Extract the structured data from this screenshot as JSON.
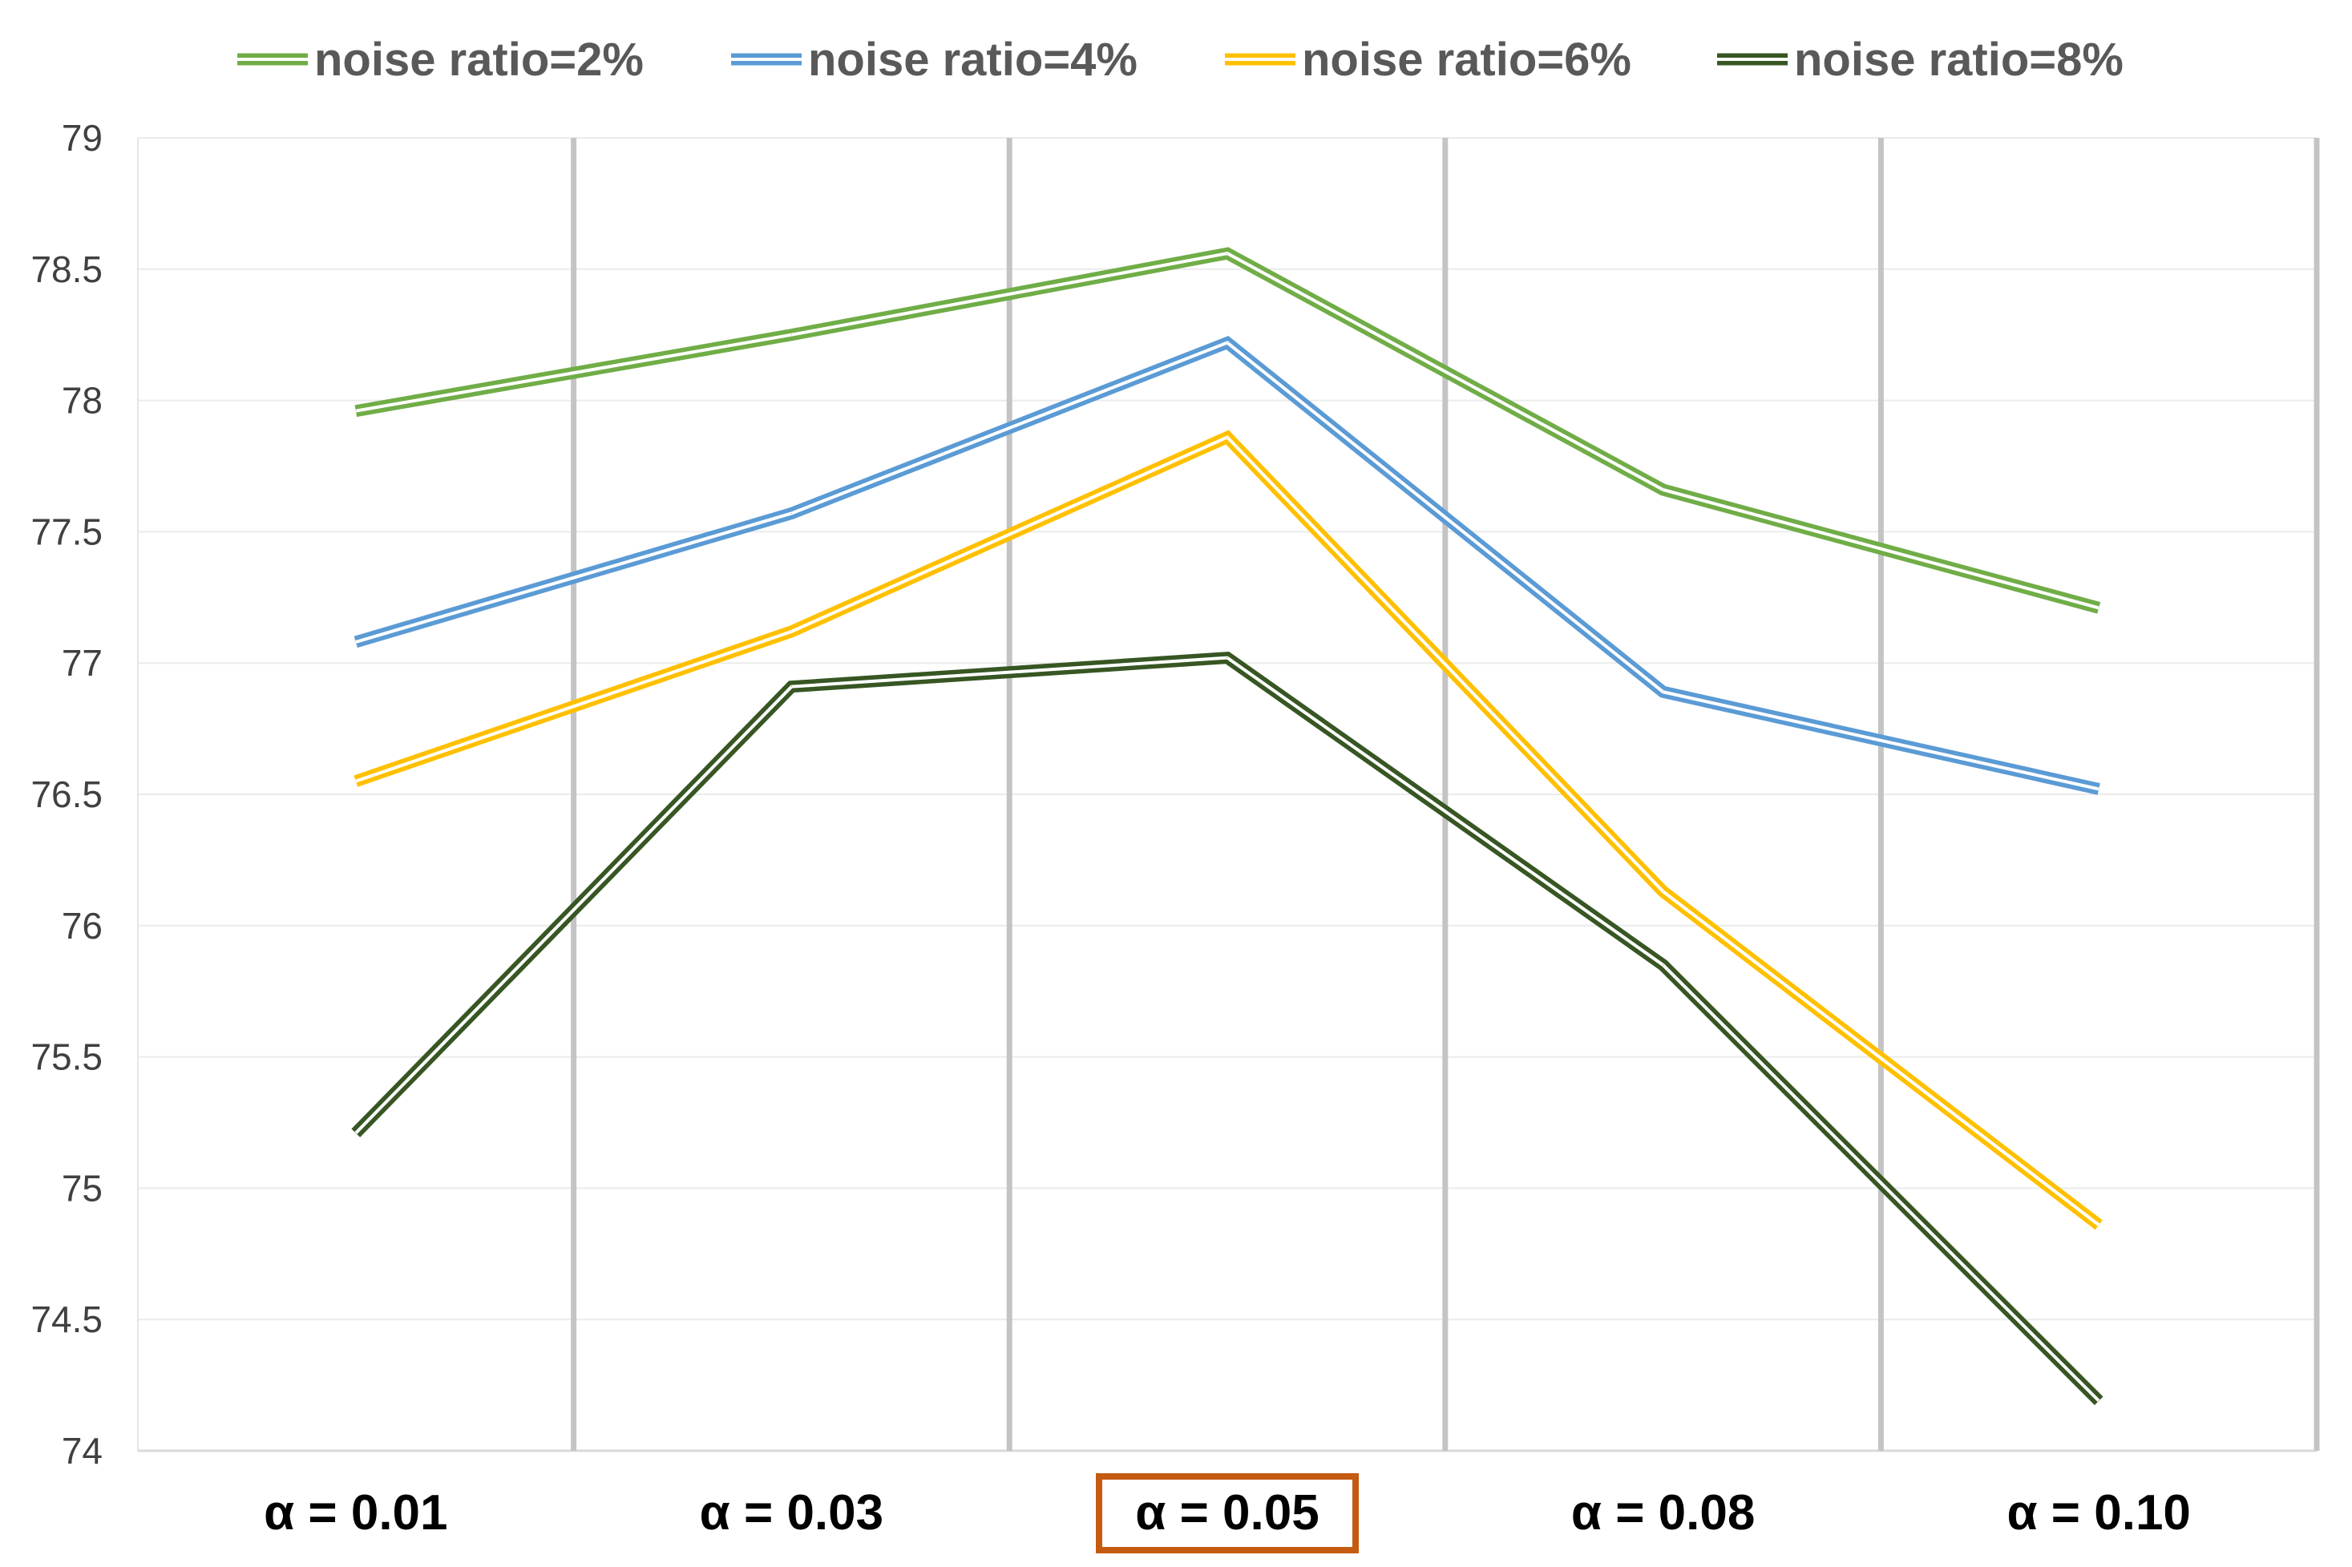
{
  "chart_data": {
    "type": "line",
    "title": "",
    "xlabel": "",
    "ylabel": "",
    "categories": [
      "α = 0.01",
      "α = 0.03",
      "α = 0.05",
      "α = 0.08",
      "α = 0.10"
    ],
    "highlighted_category": "α = 0.05",
    "highlight_color": "#C55A11",
    "ylim": [
      74,
      79
    ],
    "yticks": [
      "74",
      "74.5",
      "75",
      "75.5",
      "76",
      "76.5",
      "77",
      "77.5",
      "78",
      "78.5",
      "79"
    ],
    "grid": true,
    "legend_position": "top",
    "line_style": "double",
    "series": [
      {
        "name": "noise ratio=2%",
        "color": "#70AD47",
        "values": [
          77.96,
          78.25,
          78.56,
          77.66,
          77.21
        ]
      },
      {
        "name": "noise ratio=4%",
        "color": "#5B9BD5",
        "values": [
          77.08,
          77.57,
          78.22,
          76.89,
          76.52
        ]
      },
      {
        "name": "noise ratio=6%",
        "color": "#FFC000",
        "values": [
          76.55,
          77.12,
          77.86,
          76.13,
          74.86
        ]
      },
      {
        "name": "noise ratio=8%",
        "color": "#375623",
        "values": [
          75.21,
          76.91,
          77.02,
          75.85,
          74.19
        ]
      }
    ]
  }
}
